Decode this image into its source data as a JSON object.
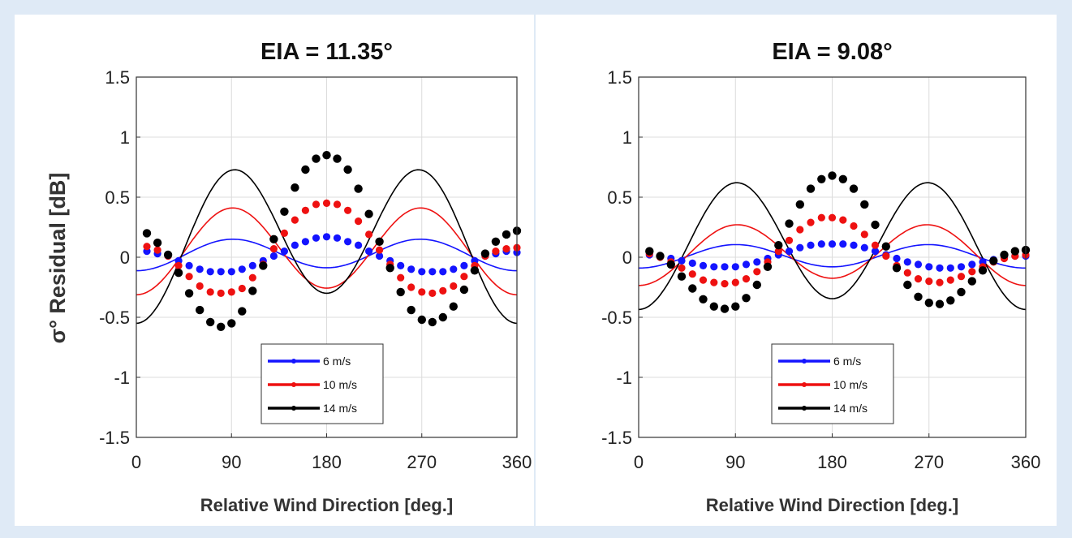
{
  "figure": {
    "ylabel": "σ° Residual [dB]"
  },
  "chart_data": [
    {
      "type": "line",
      "title": "EIA = 11.35°",
      "xlabel": "Relative Wind Direction [deg.]",
      "ylabel": "σ° Residual [dB]",
      "xlim": [
        0,
        360
      ],
      "ylim": [
        -1.5,
        1.5
      ],
      "xticks": [
        0,
        90,
        180,
        270,
        360
      ],
      "yticks": [
        1.5,
        1,
        0.5,
        0,
        -0.5,
        -1,
        -1.5
      ],
      "grid": true,
      "legend_position": "bottom-center",
      "x_points": [
        10,
        20,
        30,
        40,
        50,
        60,
        70,
        80,
        90,
        100,
        110,
        120,
        130,
        140,
        150,
        160,
        170,
        180,
        190,
        200,
        210,
        220,
        230,
        240,
        250,
        260,
        270,
        280,
        290,
        300,
        310,
        320,
        330,
        340,
        350,
        360
      ],
      "series": [
        {
          "name": "6 m/s",
          "color": "#1414ff",
          "harmonics": {
            "a0": 0.025,
            "a1": -0.0125,
            "a2": -0.125
          },
          "values": [
            0.05,
            0.03,
            0.01,
            -0.03,
            -0.07,
            -0.1,
            -0.12,
            -0.12,
            -0.12,
            -0.1,
            -0.07,
            -0.03,
            0.01,
            0.05,
            0.1,
            0.13,
            0.16,
            0.17,
            0.16,
            0.13,
            0.1,
            0.05,
            0.01,
            -0.03,
            -0.07,
            -0.1,
            -0.12,
            -0.12,
            -0.12,
            -0.1,
            -0.07,
            -0.03,
            0.01,
            0.03,
            0.05,
            0.04
          ]
        },
        {
          "name": "10 m/s",
          "color": "#ee1111",
          "harmonics": {
            "a0": 0.0625,
            "a1": -0.0275,
            "a2": -0.3475
          },
          "values": [
            0.09,
            0.06,
            0.01,
            -0.07,
            -0.16,
            -0.24,
            -0.29,
            -0.3,
            -0.29,
            -0.26,
            -0.17,
            -0.06,
            0.07,
            0.2,
            0.31,
            0.39,
            0.44,
            0.45,
            0.44,
            0.39,
            0.3,
            0.19,
            0.06,
            -0.06,
            -0.17,
            -0.25,
            -0.29,
            -0.3,
            -0.28,
            -0.24,
            -0.16,
            -0.07,
            0.01,
            0.05,
            0.07,
            0.08
          ]
        },
        {
          "name": "14 m/s",
          "color": "#000000",
          "harmonics": {
            "a0": 0.15,
            "a1": -0.125,
            "a2": -0.575
          },
          "values": [
            0.2,
            0.12,
            0.02,
            -0.13,
            -0.3,
            -0.44,
            -0.54,
            -0.58,
            -0.55,
            -0.45,
            -0.28,
            -0.07,
            0.15,
            0.38,
            0.58,
            0.73,
            0.82,
            0.85,
            0.82,
            0.73,
            0.57,
            0.36,
            0.13,
            -0.09,
            -0.29,
            -0.44,
            -0.52,
            -0.54,
            -0.5,
            -0.41,
            -0.27,
            -0.11,
            0.03,
            0.13,
            0.19,
            0.22
          ]
        }
      ]
    },
    {
      "type": "line",
      "title": "EIA = 9.08°",
      "xlabel": "Relative Wind Direction [deg.]",
      "ylabel": "σ° Residual [dB]",
      "xlim": [
        0,
        360
      ],
      "ylim": [
        -1.5,
        1.5
      ],
      "xticks": [
        0,
        90,
        180,
        270,
        360
      ],
      "yticks": [
        1.5,
        1,
        0.5,
        0,
        -0.5,
        -1,
        -1.5
      ],
      "grid": true,
      "legend_position": "bottom-right",
      "x_points": [
        10,
        20,
        30,
        40,
        50,
        60,
        70,
        80,
        90,
        100,
        110,
        120,
        130,
        140,
        150,
        160,
        170,
        180,
        190,
        200,
        210,
        220,
        230,
        240,
        250,
        260,
        270,
        280,
        290,
        300,
        310,
        320,
        330,
        340,
        350,
        360
      ],
      "series": [
        {
          "name": "6 m/s",
          "color": "#1414ff",
          "harmonics": {
            "a0": 0.01,
            "a1": -0.005,
            "a2": -0.095
          },
          "values": [
            0.02,
            0.01,
            -0.01,
            -0.03,
            -0.05,
            -0.07,
            -0.08,
            -0.08,
            -0.08,
            -0.06,
            -0.04,
            -0.01,
            0.02,
            0.05,
            0.08,
            0.1,
            0.11,
            0.11,
            0.11,
            0.1,
            0.08,
            0.05,
            0.02,
            -0.01,
            -0.04,
            -0.06,
            -0.08,
            -0.09,
            -0.09,
            -0.08,
            -0.06,
            -0.04,
            -0.02,
            0.0,
            0.01,
            0.01
          ]
        },
        {
          "name": "10 m/s",
          "color": "#ee1111",
          "harmonics": {
            "a0": 0.0325,
            "a1": -0.03,
            "a2": -0.2375
          },
          "values": [
            0.03,
            0.0,
            -0.04,
            -0.09,
            -0.14,
            -0.19,
            -0.21,
            -0.22,
            -0.21,
            -0.18,
            -0.12,
            -0.04,
            0.05,
            0.14,
            0.23,
            0.29,
            0.33,
            0.33,
            0.31,
            0.26,
            0.19,
            0.1,
            0.01,
            -0.07,
            -0.13,
            -0.18,
            -0.2,
            -0.21,
            -0.19,
            -0.16,
            -0.12,
            -0.08,
            -0.04,
            -0.01,
            0.01,
            0.02
          ]
        },
        {
          "name": "14 m/s",
          "color": "#000000",
          "harmonics": {
            "a0": 0.115,
            "a1": -0.045,
            "a2": -0.505
          },
          "values": [
            0.05,
            0.01,
            -0.06,
            -0.16,
            -0.26,
            -0.35,
            -0.41,
            -0.43,
            -0.41,
            -0.34,
            -0.23,
            -0.08,
            0.1,
            0.28,
            0.44,
            0.57,
            0.65,
            0.68,
            0.65,
            0.57,
            0.44,
            0.27,
            0.09,
            -0.09,
            -0.23,
            -0.33,
            -0.38,
            -0.39,
            -0.36,
            -0.29,
            -0.2,
            -0.11,
            -0.03,
            0.02,
            0.05,
            0.06
          ]
        }
      ]
    }
  ]
}
